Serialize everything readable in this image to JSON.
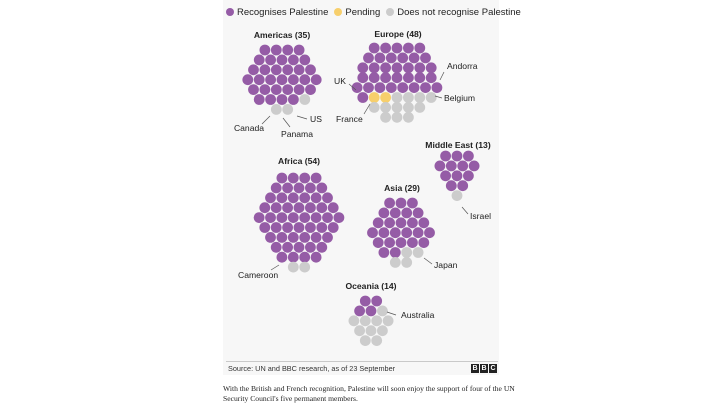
{
  "legend": {
    "items": [
      {
        "label": "Recognises Palestine",
        "color": "#955ca6"
      },
      {
        "label": "Pending",
        "color": "#f7cf6c"
      },
      {
        "label": "Does not recognise Palestine",
        "color": "#cccccc"
      }
    ]
  },
  "chart_data": {
    "type": "unit-dot-map",
    "unit": "one dot = one country",
    "colors": {
      "recognises": "#955ca6",
      "pending": "#f7cf6c",
      "does_not": "#cccccc"
    },
    "regions": [
      {
        "title": "Americas (35)",
        "total": 35,
        "recognises": 32,
        "pending": 0,
        "does_not": 3,
        "callouts": [
          "Canada",
          "Panama",
          "US"
        ]
      },
      {
        "title": "Europe (48)",
        "total": 48,
        "recognises": 34,
        "pending": 2,
        "does_not": 12,
        "callouts": [
          "UK",
          "France",
          "Andorra",
          "Belgium"
        ]
      },
      {
        "title": "Middle East (13)",
        "total": 13,
        "recognises": 12,
        "pending": 0,
        "does_not": 1,
        "callouts": [
          "Israel"
        ]
      },
      {
        "title": "Africa (54)",
        "total": 54,
        "recognises": 52,
        "pending": 0,
        "does_not": 2,
        "callouts": [
          "Cameroon"
        ]
      },
      {
        "title": "Asia (29)",
        "total": 29,
        "recognises": 25,
        "pending": 0,
        "does_not": 4,
        "callouts": [
          "Japan"
        ]
      },
      {
        "title": "Oceania (14)",
        "total": 14,
        "recognises": 4,
        "pending": 0,
        "does_not": 10,
        "callouts": [
          "Australia"
        ]
      }
    ]
  },
  "footer": {
    "source": "Source: UN and BBC research, as of 23 September",
    "logo": [
      "B",
      "B",
      "C"
    ]
  },
  "caption": "With the British and French recognition, Palestine will soon enjoy the support of four of the UN Security Council's five permanent members."
}
